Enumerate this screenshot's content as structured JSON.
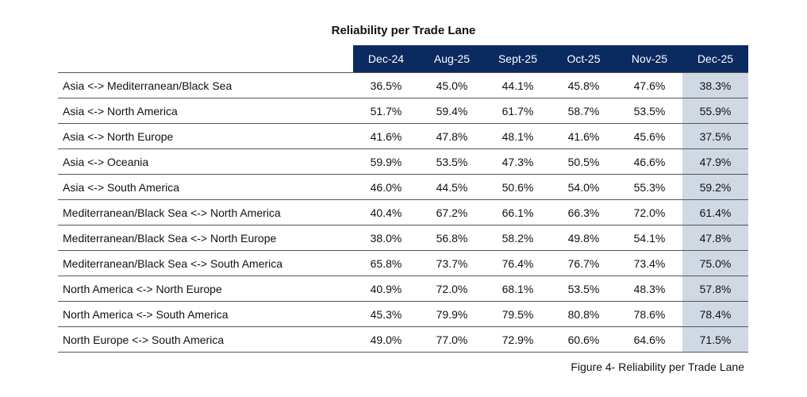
{
  "title": "Reliability per Trade Lane",
  "table": {
    "columns": [
      "Dec-24",
      "Aug-25",
      "Sept-25",
      "Oct-25",
      "Nov-25",
      "Dec-25"
    ],
    "rows": [
      {
        "lane": "Asia <-> Mediterranean/Black Sea",
        "values": [
          "36.5%",
          "45.0%",
          "44.1%",
          "45.8%",
          "47.6%",
          "38.3%"
        ]
      },
      {
        "lane": "Asia <-> North America",
        "values": [
          "51.7%",
          "59.4%",
          "61.7%",
          "58.7%",
          "53.5%",
          "55.9%"
        ]
      },
      {
        "lane": "Asia <-> North Europe",
        "values": [
          "41.6%",
          "47.8%",
          "48.1%",
          "41.6%",
          "45.6%",
          "37.5%"
        ]
      },
      {
        "lane": "Asia <-> Oceania",
        "values": [
          "59.9%",
          "53.5%",
          "47.3%",
          "50.5%",
          "46.6%",
          "47.9%"
        ]
      },
      {
        "lane": "Asia <-> South America",
        "values": [
          "46.0%",
          "44.5%",
          "50.6%",
          "54.0%",
          "55.3%",
          "59.2%"
        ]
      },
      {
        "lane": "Mediterranean/Black Sea <-> North America",
        "values": [
          "40.4%",
          "67.2%",
          "66.1%",
          "66.3%",
          "72.0%",
          "61.4%"
        ]
      },
      {
        "lane": "Mediterranean/Black Sea <-> North Europe",
        "values": [
          "38.0%",
          "56.8%",
          "58.2%",
          "49.8%",
          "54.1%",
          "47.8%"
        ]
      },
      {
        "lane": "Mediterranean/Black Sea <-> South America",
        "values": [
          "65.8%",
          "73.7%",
          "76.4%",
          "76.7%",
          "73.4%",
          "75.0%"
        ]
      },
      {
        "lane": "North America <-> North Europe",
        "values": [
          "40.9%",
          "72.0%",
          "68.1%",
          "53.5%",
          "48.3%",
          "57.8%"
        ]
      },
      {
        "lane": "North America <-> South America",
        "values": [
          "45.3%",
          "79.9%",
          "79.5%",
          "80.8%",
          "78.6%",
          "78.4%"
        ]
      },
      {
        "lane": "North Europe <-> South America",
        "values": [
          "49.0%",
          "77.0%",
          "72.9%",
          "60.6%",
          "64.6%",
          "71.5%"
        ]
      }
    ]
  },
  "caption": "Figure 4- Reliability per Trade Lane"
}
